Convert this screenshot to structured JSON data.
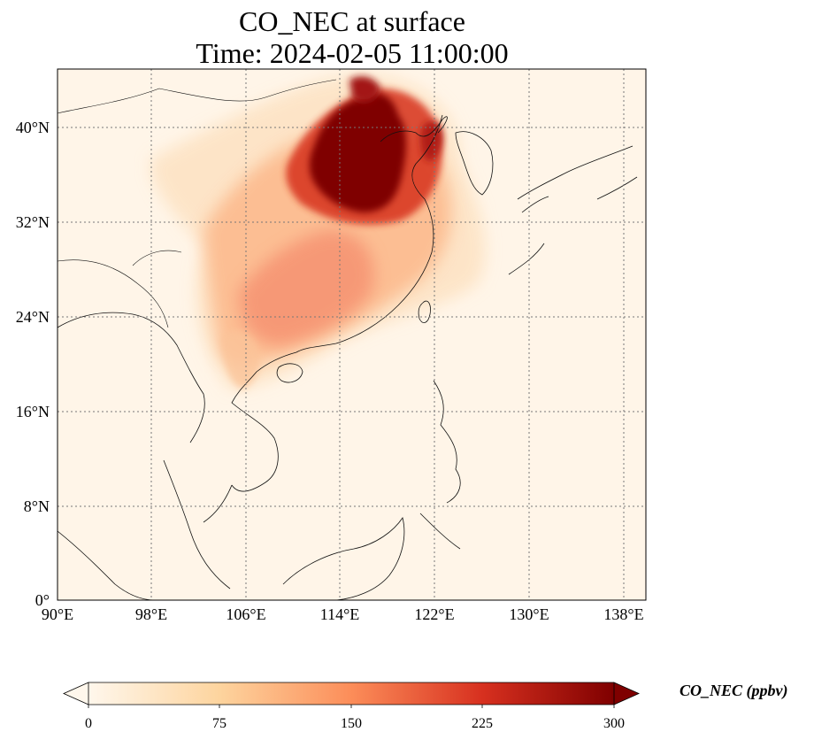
{
  "title_line1": "CO_NEC at surface",
  "title_line2": "Time: 2024-02-05 11:00:00",
  "map": {
    "lon_range": [
      90,
      139.5
    ],
    "lat_range": [
      0,
      45
    ],
    "lon_ticks": [
      "90°E",
      "98°E",
      "106°E",
      "114°E",
      "122°E",
      "130°E",
      "138°E"
    ],
    "lat_ticks": [
      "0°",
      "8°N",
      "16°N",
      "24°N",
      "32°N",
      "40°N"
    ],
    "gridlines": true,
    "field": "CO_NEC",
    "colormap": "OrRd"
  },
  "colorbar": {
    "label": "CO_NEC (ppbv)",
    "min": 0,
    "max": 300,
    "ticks": [
      "0",
      "75",
      "150",
      "225",
      "300"
    ],
    "extend": "both",
    "colors": [
      "#fff7ec",
      "#fdd49e",
      "#fc8d59",
      "#d7301f",
      "#7f0000"
    ]
  }
}
